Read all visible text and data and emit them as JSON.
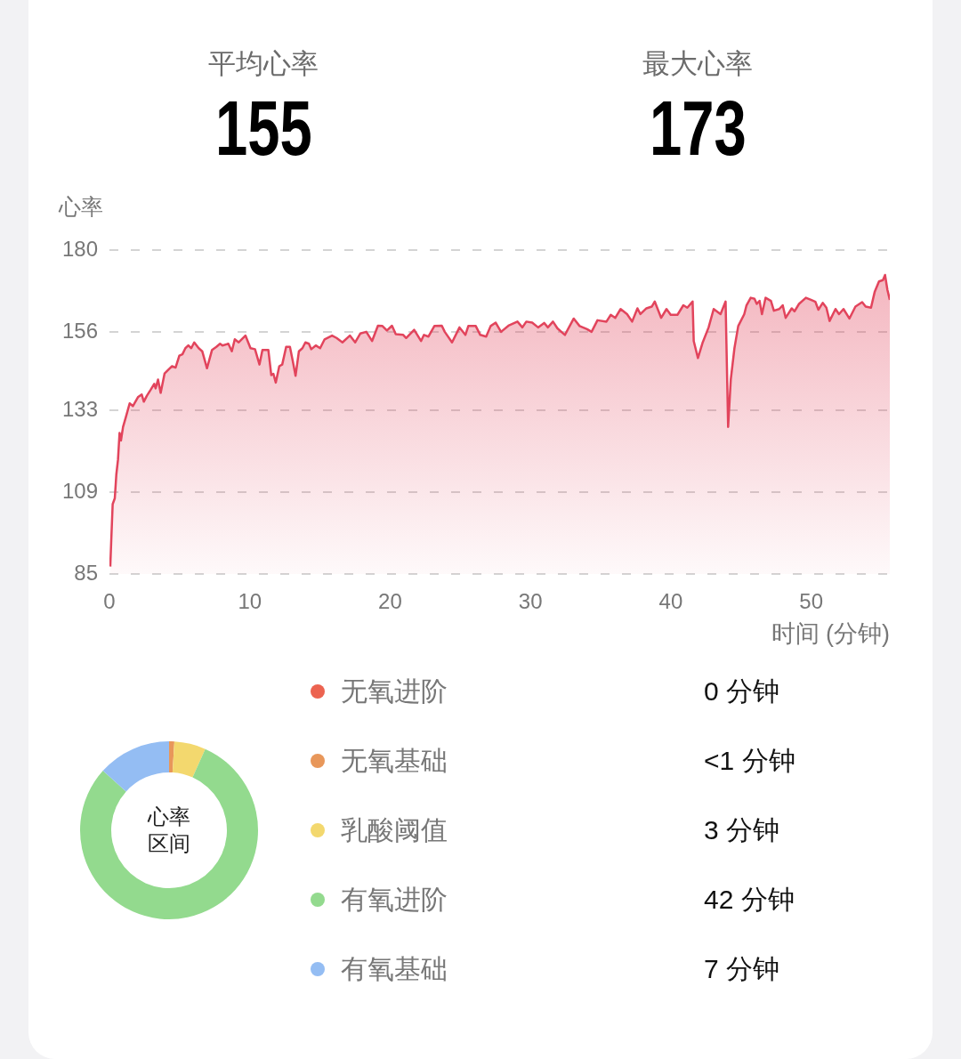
{
  "chart_data": [
    {
      "type": "other",
      "categories": [
        "平均心率",
        "最大心率"
      ],
      "values": [
        155,
        173
      ],
      "data_labels": true
    },
    {
      "type": "area",
      "ylabel": "心率",
      "xlabel": "时间 (分钟)",
      "color": "#e2445c",
      "marker": "none",
      "grid": "y",
      "xlim": [
        0,
        55.6
      ],
      "ylim": [
        85,
        180
      ],
      "xticks": [
        0,
        10,
        20,
        30,
        40,
        50
      ],
      "yticks": [
        85,
        109,
        133,
        156,
        180
      ],
      "x": [
        0.06,
        0.13,
        0.23,
        0.38,
        0.49,
        0.61,
        0.72,
        0.82,
        0.97,
        1.18,
        1.44,
        1.67,
        2.03,
        2.3,
        2.45,
        2.66,
        2.94,
        3.19,
        3.29,
        3.46,
        3.65,
        3.93,
        4.25,
        4.46,
        4.71,
        4.98,
        5.2,
        5.41,
        5.62,
        5.83,
        6.04,
        6.36,
        6.61,
        6.95,
        7.31,
        7.62,
        7.88,
        8.05,
        8.47,
        8.72,
        8.93,
        9.21,
        9.69,
        10.05,
        10.37,
        10.69,
        10.9,
        11.32,
        11.53,
        11.68,
        11.85,
        12.1,
        12.31,
        12.59,
        12.86,
        13.05,
        13.26,
        13.5,
        13.75,
        13.96,
        14.21,
        14.38,
        14.7,
        15.01,
        15.33,
        15.86,
        16.18,
        16.6,
        17.13,
        17.51,
        17.87,
        18.3,
        18.71,
        19.13,
        19.45,
        19.77,
        20.13,
        20.4,
        20.93,
        21.14,
        21.71,
        22.2,
        22.41,
        22.73,
        23.15,
        23.68,
        23.89,
        24.41,
        24.94,
        25.36,
        25.57,
        26.1,
        26.42,
        26.84,
        27.16,
        27.52,
        27.9,
        28.43,
        29.07,
        29.42,
        29.7,
        30.12,
        30.54,
        30.97,
        31.24,
        31.6,
        31.92,
        32.45,
        33.08,
        33.5,
        34.03,
        34.35,
        34.77,
        35.41,
        35.72,
        36.04,
        36.42,
        36.88,
        37.24,
        37.62,
        37.83,
        38.26,
        38.64,
        38.85,
        39.31,
        39.69,
        39.99,
        40.47,
        40.89,
        41.17,
        41.55,
        41.63,
        41.93,
        42.27,
        42.69,
        43.05,
        43.54,
        43.9,
        43.96,
        44.08,
        44.27,
        44.53,
        44.8,
        45.23,
        45.39,
        45.69,
        45.96,
        46.12,
        46.32,
        46.49,
        46.75,
        47.13,
        47.34,
        47.72,
        47.97,
        48.18,
        48.61,
        48.81,
        49.13,
        49.62,
        49.98,
        50.3,
        50.51,
        50.82,
        51.08,
        51.31,
        51.73,
        51.98,
        52.3,
        52.72,
        53.15,
        53.63,
        53.88,
        54.26,
        54.52,
        54.83,
        55.11,
        55.26,
        55.43,
        55.6
      ],
      "values": [
        87.2,
        95,
        105.5,
        107.2,
        114.2,
        118.6,
        126.4,
        124.2,
        128.2,
        131.2,
        135.1,
        134.3,
        136.9,
        137.7,
        135.6,
        137.3,
        139.1,
        140.8,
        139.5,
        142.1,
        138.2,
        143.9,
        145.2,
        146.0,
        145.6,
        149.1,
        149.5,
        151.3,
        152.1,
        151.3,
        153.0,
        151.3,
        150.4,
        145.4,
        150.8,
        151.7,
        152.6,
        152.1,
        152.6,
        150.4,
        153.9,
        153.0,
        155.0,
        151.3,
        151.0,
        146.5,
        150.8,
        150.8,
        143.4,
        143.8,
        141.2,
        146.0,
        146.5,
        151.7,
        151.7,
        147.8,
        143.2,
        150.4,
        151.3,
        153.0,
        152.6,
        151.0,
        152.1,
        151.3,
        153.9,
        155.0,
        154.3,
        153.0,
        155.0,
        153.0,
        155.6,
        156.1,
        153.4,
        157.9,
        157.8,
        156.5,
        157.9,
        155.4,
        155.2,
        154.3,
        156.7,
        153.4,
        155.2,
        154.7,
        157.8,
        157.9,
        156.1,
        153.0,
        157.4,
        155.2,
        157.8,
        157.8,
        155.2,
        154.7,
        157.8,
        158.8,
        156.1,
        157.9,
        159.1,
        157.4,
        159.1,
        158.8,
        157.4,
        158.7,
        157.4,
        159.1,
        157.1,
        155.2,
        160.0,
        157.8,
        156.9,
        156.1,
        159.5,
        159.1,
        161.1,
        160.2,
        162.8,
        161.3,
        159.1,
        163.0,
        161.3,
        163.0,
        163.5,
        165.0,
        160.2,
        162.8,
        161.1,
        161.1,
        163.9,
        163.2,
        165.0,
        153.4,
        148.4,
        153.0,
        157.4,
        162.8,
        161.3,
        165.0,
        152.6,
        128.2,
        142.1,
        151.3,
        157.8,
        161.3,
        163.9,
        166.1,
        165.8,
        164.3,
        165.2,
        161.3,
        166.1,
        165.2,
        162.3,
        162.8,
        163.9,
        160.2,
        163.0,
        162.1,
        164.3,
        166.1,
        165.5,
        164.9,
        162.6,
        164.6,
        163.2,
        159.3,
        162.8,
        161.3,
        162.8,
        160.0,
        163.5,
        164.8,
        163.5,
        163.2,
        167.8,
        170.9,
        171.3,
        172.8,
        168.4,
        165.5
      ]
    },
    {
      "type": "donut",
      "title": "心率区间",
      "legend": "right",
      "categories": [
        "无氧进阶",
        "无氧基础",
        "乳酸阈值",
        "有氧进阶",
        "有氧基础"
      ],
      "values": [
        0,
        0.5,
        3,
        42,
        7
      ],
      "colors": [
        "#ec6350",
        "#e8975a",
        "#f3d86e",
        "#93da8e",
        "#94bdf3"
      ],
      "value_labels": [
        "0 分钟",
        "<1 分钟",
        "3 分钟",
        "42 分钟",
        "7 分钟"
      ]
    }
  ]
}
